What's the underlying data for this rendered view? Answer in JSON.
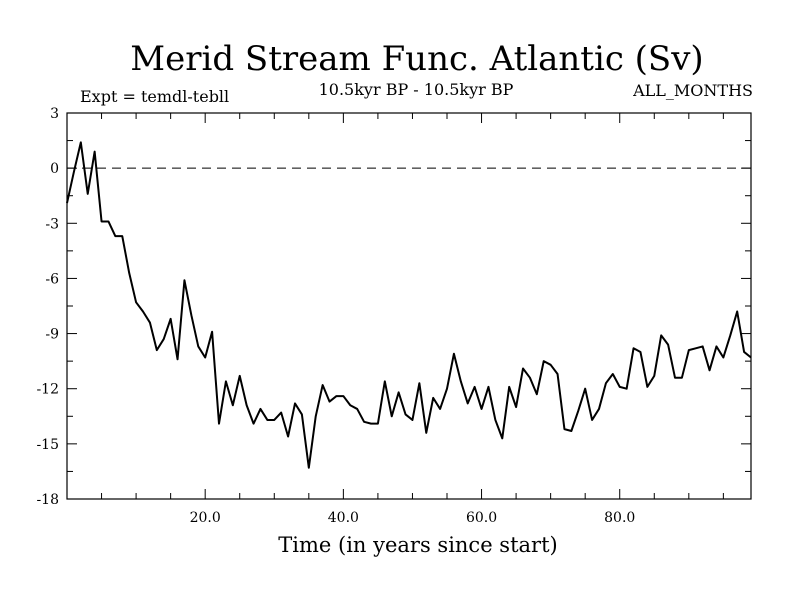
{
  "chart_data": {
    "type": "line",
    "title": "Merid Stream Func. Atlantic (Sv)",
    "subtitle_left": "Expt = temdl-tebll",
    "subtitle_center": "10.5kyr BP - 10.5kyr BP",
    "subtitle_right": "ALL_MONTHS",
    "xlabel": "Time (in years since start)",
    "ylabel": "",
    "xlim": [
      0,
      99
    ],
    "ylim": [
      -18,
      3
    ],
    "grid": false,
    "zero_line": 0,
    "x_ticks": [
      {
        "value": 20,
        "label": "20.0"
      },
      {
        "value": 40,
        "label": "40.0"
      },
      {
        "value": 60,
        "label": "60.0"
      },
      {
        "value": 80,
        "label": "80.0"
      }
    ],
    "y_ticks": [
      {
        "value": 3,
        "label": "3"
      },
      {
        "value": 0,
        "label": "0"
      },
      {
        "value": -3,
        "label": "-3"
      },
      {
        "value": -6,
        "label": "-6"
      },
      {
        "value": -9,
        "label": "-9"
      },
      {
        "value": -12,
        "label": "-12"
      },
      {
        "value": -15,
        "label": "-15"
      },
      {
        "value": -18,
        "label": "-18"
      }
    ],
    "series": [
      {
        "name": "Merid Stream Func. Atlantic",
        "color": "#000000",
        "x": [
          0,
          1,
          2,
          3,
          4,
          5,
          6,
          7,
          8,
          9,
          10,
          11,
          12,
          13,
          14,
          15,
          16,
          17,
          18,
          19,
          20,
          21,
          22,
          23,
          24,
          25,
          26,
          27,
          28,
          29,
          30,
          31,
          32,
          33,
          34,
          35,
          36,
          37,
          38,
          39,
          40,
          41,
          42,
          43,
          44,
          45,
          46,
          47,
          48,
          49,
          50,
          51,
          52,
          53,
          54,
          55,
          56,
          57,
          58,
          59,
          60,
          61,
          62,
          63,
          64,
          65,
          66,
          67,
          68,
          69,
          70,
          71,
          72,
          73,
          74,
          75,
          76,
          77,
          78,
          79,
          80,
          81,
          82,
          83,
          84,
          85,
          86,
          87,
          88,
          89,
          90,
          91,
          92,
          93,
          94,
          95,
          96,
          97,
          98,
          99
        ],
        "values": [
          -1.9,
          -0.2,
          1.4,
          -1.4,
          0.9,
          -2.9,
          -2.9,
          -3.7,
          -3.7,
          -5.7,
          -7.3,
          -7.8,
          -8.4,
          -9.9,
          -9.3,
          -8.2,
          -10.4,
          -6.1,
          -8.0,
          -9.7,
          -10.3,
          -8.9,
          -13.9,
          -11.6,
          -12.9,
          -11.3,
          -12.9,
          -13.9,
          -13.1,
          -13.7,
          -13.7,
          -13.3,
          -14.6,
          -12.8,
          -13.4,
          -16.3,
          -13.5,
          -11.8,
          -12.7,
          -12.4,
          -12.4,
          -12.9,
          -13.1,
          -13.8,
          -13.9,
          -13.9,
          -11.6,
          -13.5,
          -12.2,
          -13.4,
          -13.7,
          -11.7,
          -14.4,
          -12.5,
          -13.1,
          -12.0,
          -10.1,
          -11.6,
          -12.8,
          -11.9,
          -13.1,
          -11.9,
          -13.7,
          -14.7,
          -11.9,
          -13.0,
          -10.9,
          -11.4,
          -12.3,
          -10.5,
          -10.7,
          -11.2,
          -14.2,
          -14.3,
          -13.2,
          -12.0,
          -13.7,
          -13.1,
          -11.7,
          -11.2,
          -11.9,
          -12.0,
          -9.8,
          -10.0,
          -11.9,
          -11.3,
          -9.1,
          -9.6,
          -11.4,
          -11.4,
          -9.9,
          -9.8,
          -9.7,
          -11.0,
          -9.7,
          -10.3,
          -9.1,
          -7.8,
          -10.0,
          -10.3
        ]
      }
    ]
  }
}
